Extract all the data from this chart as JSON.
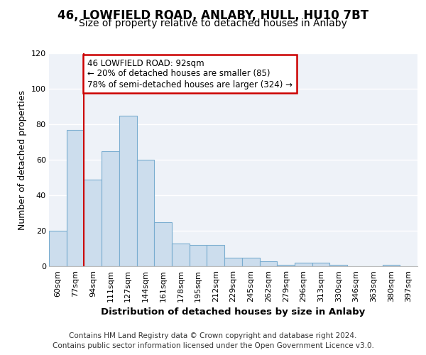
{
  "title": "46, LOWFIELD ROAD, ANLABY, HULL, HU10 7BT",
  "subtitle": "Size of property relative to detached houses in Anlaby",
  "xlabel": "Distribution of detached houses by size in Anlaby",
  "ylabel": "Number of detached properties",
  "categories": [
    "60sqm",
    "77sqm",
    "94sqm",
    "111sqm",
    "127sqm",
    "144sqm",
    "161sqm",
    "178sqm",
    "195sqm",
    "212sqm",
    "229sqm",
    "245sqm",
    "262sqm",
    "279sqm",
    "296sqm",
    "313sqm",
    "330sqm",
    "346sqm",
    "363sqm",
    "380sqm",
    "397sqm"
  ],
  "values": [
    20,
    77,
    49,
    65,
    85,
    60,
    25,
    13,
    12,
    12,
    5,
    5,
    3,
    1,
    2,
    2,
    1,
    0,
    0,
    1,
    0
  ],
  "bar_color": "#ccdded",
  "bar_edge_color": "#7aadd0",
  "background_color": "#eef2f8",
  "grid_color": "#ffffff",
  "annotation_text": "46 LOWFIELD ROAD: 92sqm\n← 20% of detached houses are smaller (85)\n78% of semi-detached houses are larger (324) →",
  "annotation_box_color": "#ffffff",
  "annotation_box_edge": "#cc0000",
  "red_line_x": 2,
  "ylim": [
    0,
    120
  ],
  "yticks": [
    0,
    20,
    40,
    60,
    80,
    100,
    120
  ],
  "footer": "Contains HM Land Registry data © Crown copyright and database right 2024.\nContains public sector information licensed under the Open Government Licence v3.0.",
  "title_fontsize": 12,
  "subtitle_fontsize": 10,
  "xlabel_fontsize": 9.5,
  "ylabel_fontsize": 9,
  "tick_fontsize": 8,
  "footer_fontsize": 7.5
}
